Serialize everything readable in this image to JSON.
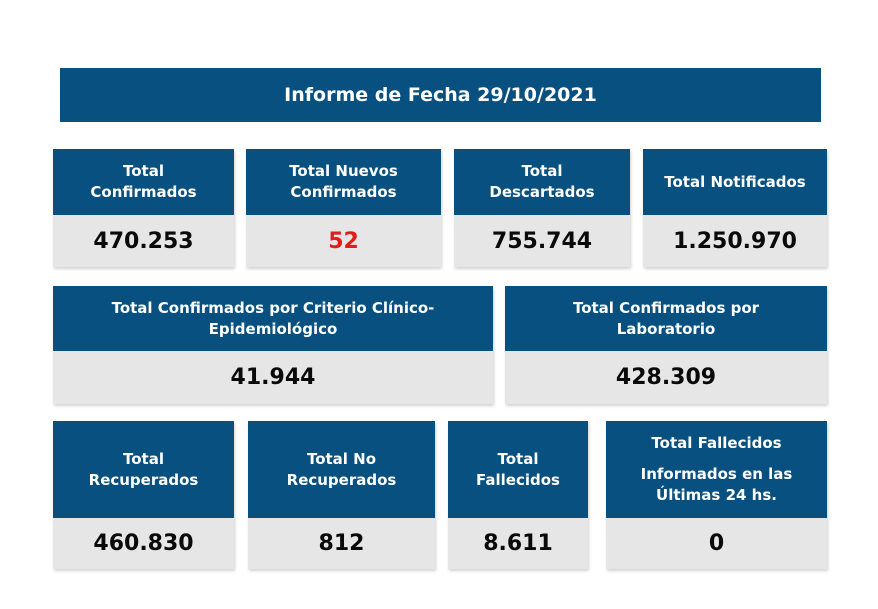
{
  "header": {
    "title": "Informe de Fecha 29/10/2021"
  },
  "row1": [
    {
      "label_lines": [
        "Total",
        "Confirmados"
      ],
      "value": "470.253"
    },
    {
      "label_lines": [
        "Total Nuevos",
        "Confirmados"
      ],
      "value": "52"
    },
    {
      "label_lines": [
        "Total",
        "Descartados"
      ],
      "value": "755.744"
    },
    {
      "label_lines": [
        "Total Notificados"
      ],
      "value": "1.250.970"
    }
  ],
  "row2": [
    {
      "label_lines": [
        "Total Confirmados por Criterio Clínico-",
        "Epidemiológico"
      ],
      "value": "41.944"
    },
    {
      "label_lines": [
        "Total Confirmados por",
        "Laboratorio"
      ],
      "value": "428.309"
    }
  ],
  "row3": [
    {
      "label_lines": [
        "Total",
        "Recuperados"
      ],
      "value": "460.830"
    },
    {
      "label_lines": [
        "Total No",
        "Recuperados"
      ],
      "value": "812"
    },
    {
      "label_lines": [
        "Total",
        "Fallecidos"
      ],
      "value": "8.611"
    },
    {
      "label_lines": [
        "Total Fallecidos",
        "Informados en las",
        "Últimas 24 hs."
      ],
      "value": "0"
    }
  ],
  "colors": {
    "header_blue": "#08507f",
    "value_background": "#e6e6e6",
    "highlight_red": "#e11c1c"
  }
}
